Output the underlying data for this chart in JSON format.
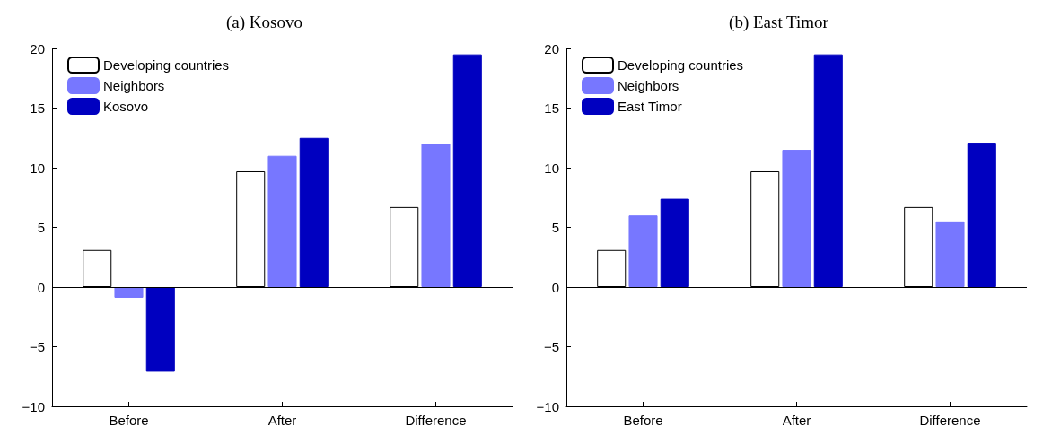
{
  "chart_data": [
    {
      "type": "bar",
      "title": "(a) Kosovo",
      "categories": [
        "Before",
        "After",
        "Difference"
      ],
      "series": [
        {
          "name": "Developing countries",
          "color": "#ffffff",
          "values": [
            3.1,
            9.7,
            6.7
          ]
        },
        {
          "name": "Neighbors",
          "color": "#7777ff",
          "values": [
            -0.9,
            11,
            12
          ]
        },
        {
          "name": "Kosovo",
          "color": "#0000c0",
          "values": [
            -7.1,
            12.5,
            19.5
          ]
        }
      ],
      "ylim": [
        -10,
        20
      ],
      "yticks": [
        -10,
        -5,
        0,
        5,
        10,
        15,
        20
      ],
      "grid": false,
      "legend": "top left",
      "ref_lines": [
        {
          "axis": "y",
          "value": 0,
          "color": "#000000"
        }
      ]
    },
    {
      "type": "bar",
      "title": "(b) East Timor",
      "categories": [
        "Before",
        "After",
        "Difference"
      ],
      "series": [
        {
          "name": "Developing countries",
          "color": "#ffffff",
          "values": [
            3.1,
            9.7,
            6.7
          ]
        },
        {
          "name": "Neighbors",
          "color": "#7777ff",
          "values": [
            6,
            11.5,
            5.5
          ]
        },
        {
          "name": "East Timor",
          "color": "#0000c0",
          "values": [
            7.4,
            19.5,
            12.1
          ]
        }
      ],
      "ylim": [
        -10,
        20
      ],
      "yticks": [
        -10,
        -5,
        0,
        5,
        10,
        15,
        20
      ],
      "grid": false,
      "legend": "top left",
      "ref_lines": [
        {
          "axis": "y",
          "value": 0,
          "color": "#000000"
        }
      ]
    }
  ]
}
